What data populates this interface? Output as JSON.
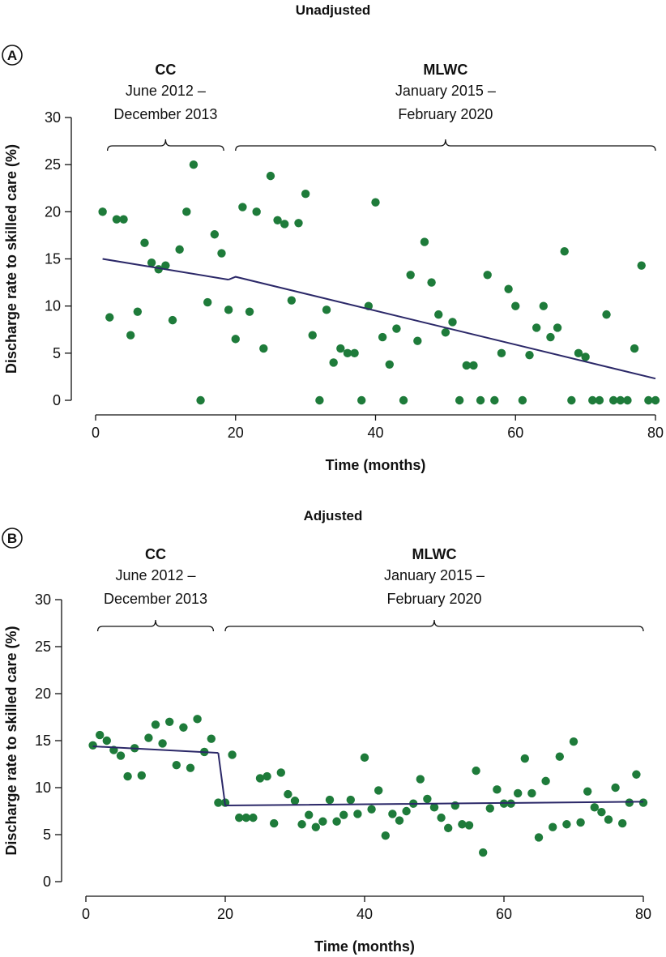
{
  "figure": {
    "point_color": "#1e7b3a",
    "line_color": "#2b2868"
  },
  "chart_data": [
    {
      "type": "scatter",
      "panel": "A",
      "title": "Unadjusted",
      "xlabel": "Time (months)",
      "ylabel": "Discharge rate to skilled care (%)",
      "xlim": [
        0,
        80
      ],
      "ylim": [
        0,
        30
      ],
      "xticks": [
        0,
        20,
        40,
        60,
        80
      ],
      "yticks": [
        0,
        5,
        10,
        15,
        20,
        25,
        30
      ],
      "periods": [
        {
          "name": "CC",
          "line1": "June 2012 –",
          "line2": "December 2013",
          "start": 1,
          "end": 19
        },
        {
          "name": "MLWC",
          "line1": "January 2015 –",
          "line2": "February 2020",
          "start": 20,
          "end": 80
        }
      ],
      "points": [
        [
          1,
          20
        ],
        [
          2,
          8.8
        ],
        [
          3,
          19.2
        ],
        [
          4,
          19.2
        ],
        [
          5,
          6.9
        ],
        [
          6,
          9.4
        ],
        [
          7,
          16.7
        ],
        [
          8,
          14.6
        ],
        [
          9,
          13.9
        ],
        [
          10,
          14.3
        ],
        [
          11,
          8.5
        ],
        [
          12,
          16
        ],
        [
          13,
          20
        ],
        [
          14,
          25
        ],
        [
          15,
          0
        ],
        [
          16,
          10.4
        ],
        [
          17,
          17.6
        ],
        [
          18,
          15.6
        ],
        [
          19,
          9.6
        ],
        [
          20,
          6.5
        ],
        [
          21,
          20.5
        ],
        [
          22,
          9.4
        ],
        [
          23,
          20
        ],
        [
          24,
          5.5
        ],
        [
          25,
          23.8
        ],
        [
          26,
          19.1
        ],
        [
          27,
          18.7
        ],
        [
          28,
          10.6
        ],
        [
          29,
          18.8
        ],
        [
          30,
          21.9
        ],
        [
          31,
          6.9
        ],
        [
          32,
          0
        ],
        [
          33,
          9.6
        ],
        [
          34,
          4
        ],
        [
          35,
          5.5
        ],
        [
          36,
          5
        ],
        [
          37,
          5
        ],
        [
          38,
          0
        ],
        [
          39,
          10
        ],
        [
          40,
          21
        ],
        [
          41,
          6.7
        ],
        [
          42,
          3.8
        ],
        [
          43,
          7.6
        ],
        [
          44,
          0
        ],
        [
          45,
          13.3
        ],
        [
          46,
          6.3
        ],
        [
          47,
          16.8
        ],
        [
          48,
          12.5
        ],
        [
          49,
          9.1
        ],
        [
          50,
          7.2
        ],
        [
          51,
          8.3
        ],
        [
          52,
          0
        ],
        [
          53,
          3.7
        ],
        [
          54,
          3.7
        ],
        [
          55,
          0
        ],
        [
          56,
          13.3
        ],
        [
          57,
          0
        ],
        [
          58,
          5
        ],
        [
          59,
          11.8
        ],
        [
          60,
          10
        ],
        [
          61,
          0
        ],
        [
          62,
          4.8
        ],
        [
          63,
          7.7
        ],
        [
          64,
          10
        ],
        [
          65,
          6.7
        ],
        [
          66,
          7.7
        ],
        [
          67,
          15.8
        ],
        [
          68,
          0
        ],
        [
          69,
          5
        ],
        [
          70,
          4.6
        ],
        [
          71,
          0
        ],
        [
          72,
          0
        ],
        [
          73,
          9.1
        ],
        [
          74,
          0
        ],
        [
          75,
          0
        ],
        [
          76,
          0
        ],
        [
          77,
          5.5
        ],
        [
          78,
          14.3
        ],
        [
          79,
          0
        ],
        [
          80,
          0
        ]
      ],
      "fit_segments": [
        [
          [
            1,
            15
          ],
          [
            19,
            12.8
          ]
        ],
        [
          [
            19,
            12.8
          ],
          [
            20,
            13.1
          ],
          [
            80,
            2.3
          ]
        ]
      ]
    },
    {
      "type": "scatter",
      "panel": "B",
      "title": "Adjusted",
      "xlabel": "Time (months)",
      "ylabel": "Discharge rate to skilled care (%)",
      "xlim": [
        0,
        80
      ],
      "ylim": [
        0,
        30
      ],
      "xticks": [
        0,
        20,
        40,
        60,
        80
      ],
      "yticks": [
        0,
        5,
        10,
        15,
        20,
        25,
        30
      ],
      "periods": [
        {
          "name": "CC",
          "line1": "June 2012 –",
          "line2": "December 2013",
          "start": 1,
          "end": 19
        },
        {
          "name": "MLWC",
          "line1": "January 2015 –",
          "line2": "February 2020",
          "start": 20,
          "end": 80
        }
      ],
      "points": [
        [
          1,
          14.5
        ],
        [
          2,
          15.6
        ],
        [
          3,
          15
        ],
        [
          4,
          14
        ],
        [
          5,
          13.4
        ],
        [
          6,
          11.2
        ],
        [
          7,
          14.2
        ],
        [
          8,
          11.3
        ],
        [
          9,
          15.3
        ],
        [
          10,
          16.7
        ],
        [
          11,
          14.7
        ],
        [
          12,
          17
        ],
        [
          13,
          12.4
        ],
        [
          14,
          16.4
        ],
        [
          15,
          12.1
        ],
        [
          16,
          17.3
        ],
        [
          17,
          13.8
        ],
        [
          18,
          15.2
        ],
        [
          19,
          8.4
        ],
        [
          20,
          8.4
        ],
        [
          21,
          13.5
        ],
        [
          22,
          6.8
        ],
        [
          23,
          6.8
        ],
        [
          24,
          6.8
        ],
        [
          25,
          11
        ],
        [
          26,
          11.2
        ],
        [
          27,
          6.2
        ],
        [
          28,
          11.6
        ],
        [
          29,
          9.3
        ],
        [
          30,
          8.6
        ],
        [
          31,
          6.1
        ],
        [
          32,
          7.1
        ],
        [
          33,
          5.8
        ],
        [
          34,
          6.4
        ],
        [
          35,
          8.7
        ],
        [
          36,
          6.4
        ],
        [
          37,
          7.1
        ],
        [
          38,
          8.7
        ],
        [
          39,
          7.2
        ],
        [
          40,
          13.2
        ],
        [
          41,
          7.7
        ],
        [
          42,
          9.7
        ],
        [
          43,
          4.9
        ],
        [
          44,
          7.2
        ],
        [
          45,
          6.5
        ],
        [
          46,
          7.5
        ],
        [
          47,
          8.3
        ],
        [
          48,
          10.9
        ],
        [
          49,
          8.8
        ],
        [
          50,
          7.9
        ],
        [
          51,
          6.8
        ],
        [
          52,
          5.7
        ],
        [
          53,
          8.1
        ],
        [
          54,
          6.1
        ],
        [
          55,
          6
        ],
        [
          56,
          11.8
        ],
        [
          57,
          3.1
        ],
        [
          58,
          7.8
        ],
        [
          59,
          9.8
        ],
        [
          60,
          8.3
        ],
        [
          61,
          8.3
        ],
        [
          62,
          9.4
        ],
        [
          63,
          13.1
        ],
        [
          64,
          9.4
        ],
        [
          65,
          4.7
        ],
        [
          66,
          10.7
        ],
        [
          67,
          5.8
        ],
        [
          68,
          13.3
        ],
        [
          69,
          6.1
        ],
        [
          70,
          14.9
        ],
        [
          71,
          6.3
        ],
        [
          72,
          9.6
        ],
        [
          73,
          7.9
        ],
        [
          74,
          7.4
        ],
        [
          75,
          6.6
        ],
        [
          76,
          10
        ],
        [
          77,
          6.2
        ],
        [
          78,
          8.4
        ],
        [
          79,
          11.4
        ],
        [
          80,
          8.4
        ]
      ],
      "fit_segments": [
        [
          [
            1,
            14.4
          ],
          [
            19,
            13.7
          ]
        ],
        [
          [
            19,
            13.7
          ],
          [
            20,
            8.1
          ],
          [
            80,
            8.5
          ]
        ]
      ]
    }
  ]
}
